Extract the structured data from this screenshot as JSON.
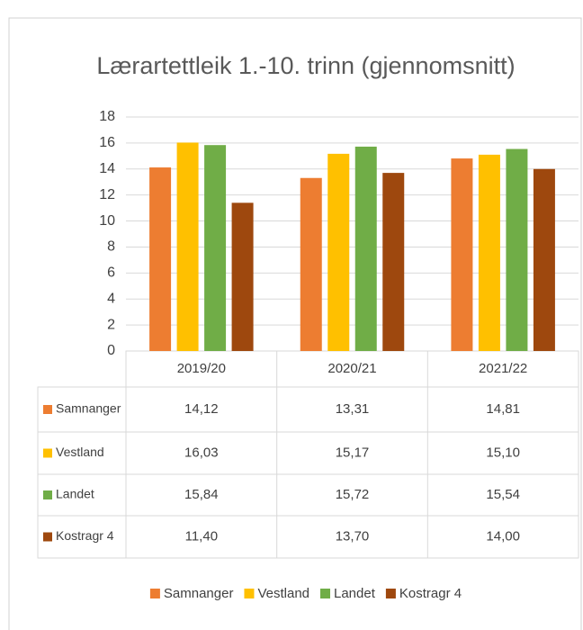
{
  "chart_data": {
    "type": "bar",
    "title": "Lærartettleik 1.-10. trinn (gjennomsnitt)",
    "categories": [
      "2019/20",
      "2020/21",
      "2021/22"
    ],
    "series": [
      {
        "name": "Samnanger",
        "color": "#ED7D31",
        "values": [
          14.12,
          13.31,
          14.81
        ],
        "value_labels": [
          "14,12",
          "13,31",
          "14,81"
        ]
      },
      {
        "name": "Vestland",
        "color": "#FFC000",
        "values": [
          16.03,
          15.17,
          15.1
        ],
        "value_labels": [
          "16,03",
          "15,17",
          "15,10"
        ]
      },
      {
        "name": "Landet",
        "color": "#70AD47",
        "values": [
          15.84,
          15.72,
          15.54
        ],
        "value_labels": [
          "15,84",
          "15,72",
          "15,54"
        ]
      },
      {
        "name": "Kostragr 4",
        "color": "#9E480E",
        "values": [
          11.4,
          13.7,
          14.0
        ],
        "value_labels": [
          "11,40",
          "13,70",
          "14,00"
        ]
      }
    ],
    "ylim": [
      0,
      18
    ],
    "yticks": [
      0,
      2,
      4,
      6,
      8,
      10,
      12,
      14,
      16,
      18
    ],
    "grid": true,
    "legend": "bottom"
  }
}
